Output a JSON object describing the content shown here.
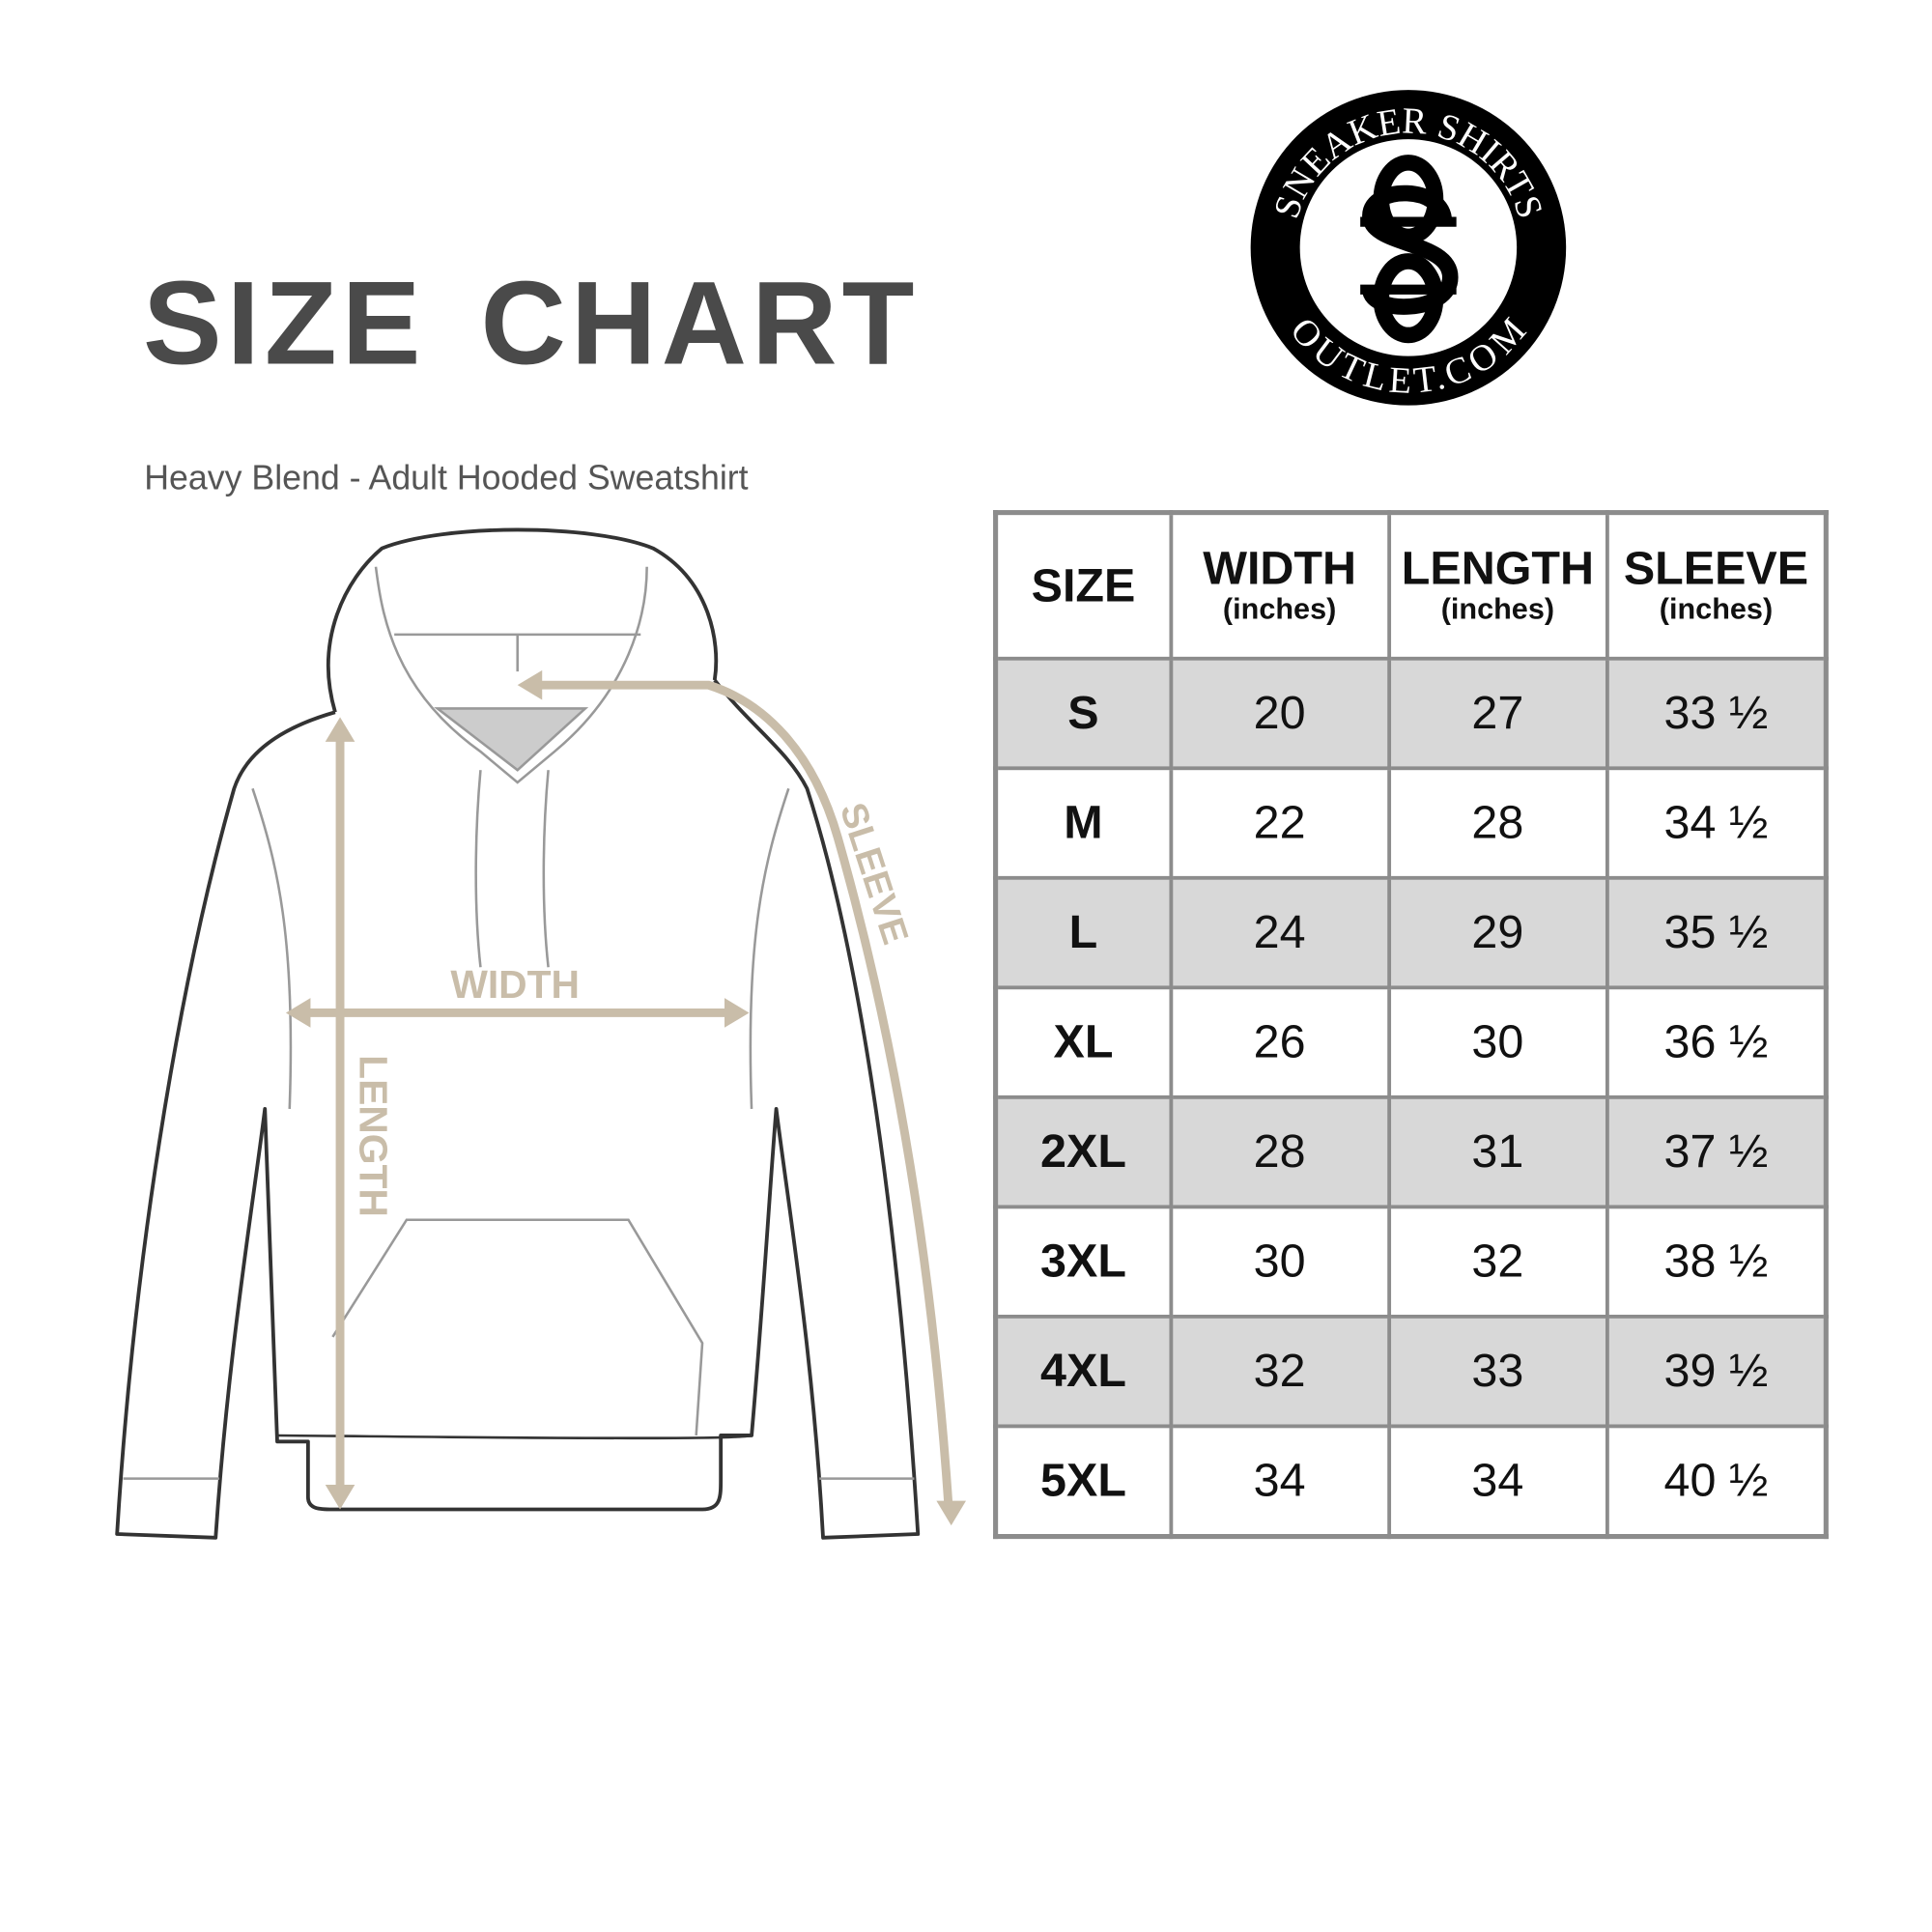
{
  "title": "SIZE CHART",
  "subtitle": "Heavy Blend - Adult Hooded Sweatshirt",
  "logo": {
    "top_text": "SNEAKER SHIRTS",
    "bottom_text": "OUTLET.COM",
    "monogram": "SS"
  },
  "diagram": {
    "width_label": "WIDTH",
    "length_label": "LENGTH",
    "sleeve_label": "SLEEVE",
    "arrow_color": "#c9bda9"
  },
  "table": {
    "headers": [
      {
        "label": "SIZE",
        "unit": ""
      },
      {
        "label": "WIDTH",
        "unit": "(inches)"
      },
      {
        "label": "LENGTH",
        "unit": "(inches)"
      },
      {
        "label": "SLEEVE",
        "unit": "(inches)"
      }
    ],
    "rows": [
      [
        "S",
        "20",
        "27",
        "33 ½"
      ],
      [
        "M",
        "22",
        "28",
        "34 ½"
      ],
      [
        "L",
        "24",
        "29",
        "35 ½"
      ],
      [
        "XL",
        "26",
        "30",
        "36 ½"
      ],
      [
        "2XL",
        "28",
        "31",
        "37 ½"
      ],
      [
        "3XL",
        "30",
        "32",
        "38 ½"
      ],
      [
        "4XL",
        "32",
        "33",
        "39 ½"
      ],
      [
        "5XL",
        "34",
        "34",
        "40 ½"
      ]
    ],
    "stripe_color": "#d8d8d8",
    "border_color": "#8c8c8c"
  }
}
